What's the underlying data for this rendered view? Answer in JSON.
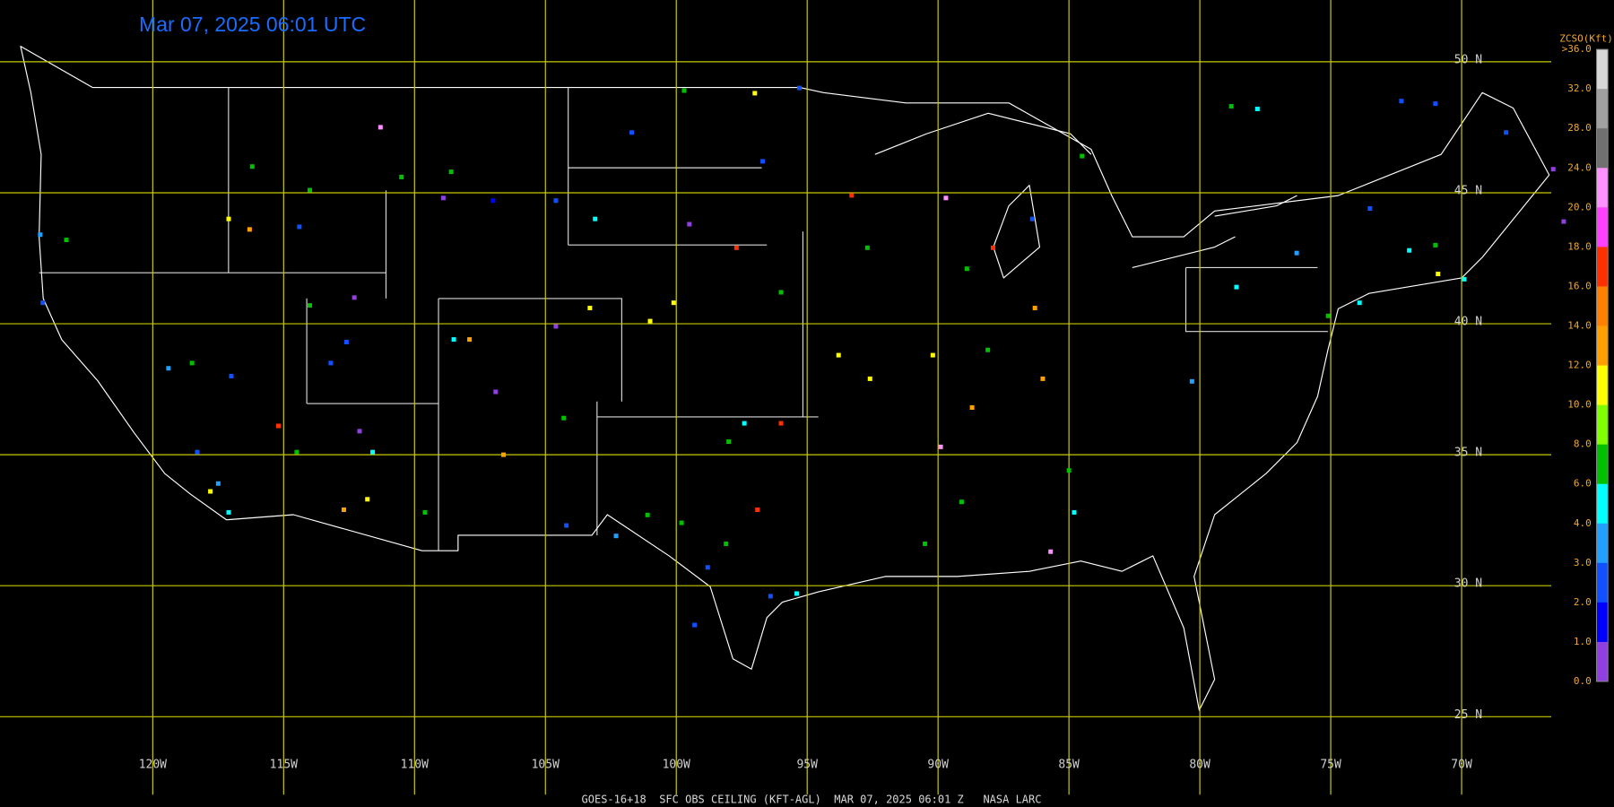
{
  "timestamp": "Mar 07, 2025 06:01 UTC",
  "footer": "GOES-16+18  SFC OBS CEILING (KFT-AGL)  MAR 07, 2025 06:01 Z   NASA LARC",
  "grid": {
    "lat": [
      {
        "value": 50,
        "label": "50 N"
      },
      {
        "value": 45,
        "label": "45 N"
      },
      {
        "value": 40,
        "label": "40 N"
      },
      {
        "value": 35,
        "label": "35 N"
      },
      {
        "value": 30,
        "label": "30 N"
      },
      {
        "value": 25,
        "label": "25 N"
      }
    ],
    "lon": [
      {
        "value": -120,
        "label": "120W"
      },
      {
        "value": -115,
        "label": "115W"
      },
      {
        "value": -110,
        "label": "110W"
      },
      {
        "value": -105,
        "label": "105W"
      },
      {
        "value": -100,
        "label": "100W"
      },
      {
        "value": -95,
        "label": "95W"
      },
      {
        "value": -90,
        "label": "90W"
      },
      {
        "value": -85,
        "label": "85W"
      },
      {
        "value": -80,
        "label": "80W"
      },
      {
        "value": -75,
        "label": "75W"
      },
      {
        "value": -70,
        "label": "70W"
      }
    ],
    "color": "#c8c800"
  },
  "colorbar": {
    "title": "ZCSO(Kft)",
    "labels": [
      ">36.0",
      "32.0",
      "28.0",
      "24.0",
      "20.0",
      "18.0",
      "16.0",
      "14.0",
      "12.0",
      "10.0",
      "8.0",
      "6.0",
      "4.0",
      "3.0",
      "2.0",
      "1.0",
      "0.0"
    ],
    "colors": [
      "#d8d8d8",
      "#a0a0a0",
      "#707070",
      "#ff90ff",
      "#ff40ff",
      "#ff3000",
      "#ff8000",
      "#ffa000",
      "#ffff00",
      "#80ff00",
      "#00c000",
      "#00ffff",
      "#20a0ff",
      "#1050ff",
      "#0000ff",
      "#9040e0"
    ]
  },
  "observations": [
    {
      "lon": -111.3,
      "lat": 47.5,
      "color": "#ff90ff"
    },
    {
      "lon": -116.2,
      "lat": 46.0,
      "color": "#00c000"
    },
    {
      "lon": -124.3,
      "lat": 43.4,
      "color": "#20a0ff"
    },
    {
      "lon": -123.3,
      "lat": 43.2,
      "color": "#00c000"
    },
    {
      "lon": -117.1,
      "lat": 44.0,
      "color": "#ffff00"
    },
    {
      "lon": -116.3,
      "lat": 43.6,
      "color": "#ffa000"
    },
    {
      "lon": -108.6,
      "lat": 45.8,
      "color": "#00c000"
    },
    {
      "lon": -101.7,
      "lat": 47.3,
      "color": "#1050ff"
    },
    {
      "lon": -99.7,
      "lat": 48.9,
      "color": "#00c000"
    },
    {
      "lon": -97.0,
      "lat": 48.8,
      "color": "#ffff00"
    },
    {
      "lon": -95.3,
      "lat": 49.0,
      "color": "#1050ff"
    },
    {
      "lon": -96.7,
      "lat": 46.2,
      "color": "#1050ff"
    },
    {
      "lon": -93.3,
      "lat": 44.9,
      "color": "#ff3000"
    },
    {
      "lon": -89.7,
      "lat": 44.8,
      "color": "#ff90ff"
    },
    {
      "lon": -87.9,
      "lat": 42.9,
      "color": "#ff3000"
    },
    {
      "lon": -84.5,
      "lat": 46.4,
      "color": "#00c000"
    },
    {
      "lon": -86.4,
      "lat": 44.0,
      "color": "#1050ff"
    },
    {
      "lon": -78.8,
      "lat": 48.3,
      "color": "#00c000"
    },
    {
      "lon": -77.8,
      "lat": 48.2,
      "color": "#00ffff"
    },
    {
      "lon": -72.3,
      "lat": 48.5,
      "color": "#1050ff"
    },
    {
      "lon": -71.0,
      "lat": 48.4,
      "color": "#1050ff"
    },
    {
      "lon": -68.3,
      "lat": 47.3,
      "color": "#1050ff"
    },
    {
      "lon": -66.5,
      "lat": 45.9,
      "color": "#9040e0"
    },
    {
      "lon": -66.1,
      "lat": 43.9,
      "color": "#9040e0"
    },
    {
      "lon": -73.5,
      "lat": 44.4,
      "color": "#1050ff"
    },
    {
      "lon": -72.0,
      "lat": 42.8,
      "color": "#00ffff"
    },
    {
      "lon": -70.9,
      "lat": 41.9,
      "color": "#ffff00"
    },
    {
      "lon": -69.9,
      "lat": 41.7,
      "color": "#00ffff"
    },
    {
      "lon": -71.0,
      "lat": 43.0,
      "color": "#00c000"
    },
    {
      "lon": -73.9,
      "lat": 40.8,
      "color": "#00ffff"
    },
    {
      "lon": -75.1,
      "lat": 40.3,
      "color": "#00c000"
    },
    {
      "lon": -76.3,
      "lat": 42.7,
      "color": "#20a0ff"
    },
    {
      "lon": -78.6,
      "lat": 41.4,
      "color": "#00ffff"
    },
    {
      "lon": -80.3,
      "lat": 37.8,
      "color": "#20a0ff"
    },
    {
      "lon": -84.8,
      "lat": 32.8,
      "color": "#00ffff"
    },
    {
      "lon": -85.0,
      "lat": 34.4,
      "color": "#00c000"
    },
    {
      "lon": -85.7,
      "lat": 31.3,
      "color": "#ff90ff"
    },
    {
      "lon": -89.1,
      "lat": 33.2,
      "color": "#00c000"
    },
    {
      "lon": -90.5,
      "lat": 31.6,
      "color": "#00c000"
    },
    {
      "lon": -89.9,
      "lat": 35.3,
      "color": "#ff90ff"
    },
    {
      "lon": -88.7,
      "lat": 36.8,
      "color": "#ffa000"
    },
    {
      "lon": -86.0,
      "lat": 37.9,
      "color": "#ffa000"
    },
    {
      "lon": -86.3,
      "lat": 40.6,
      "color": "#ffa000"
    },
    {
      "lon": -88.1,
      "lat": 39.0,
      "color": "#00c000"
    },
    {
      "lon": -90.2,
      "lat": 38.8,
      "color": "#ffff00"
    },
    {
      "lon": -88.9,
      "lat": 42.1,
      "color": "#00c000"
    },
    {
      "lon": -92.7,
      "lat": 42.9,
      "color": "#00c000"
    },
    {
      "lon": -93.8,
      "lat": 38.8,
      "color": "#ffff00"
    },
    {
      "lon": -92.6,
      "lat": 37.9,
      "color": "#ffff00"
    },
    {
      "lon": -96.0,
      "lat": 41.2,
      "color": "#00c000"
    },
    {
      "lon": -97.4,
      "lat": 36.2,
      "color": "#00ffff"
    },
    {
      "lon": -98.0,
      "lat": 35.5,
      "color": "#00c000"
    },
    {
      "lon": -96.0,
      "lat": 36.2,
      "color": "#ff3000"
    },
    {
      "lon": -96.9,
      "lat": 32.9,
      "color": "#ff3000"
    },
    {
      "lon": -98.1,
      "lat": 31.6,
      "color": "#00c000"
    },
    {
      "lon": -98.8,
      "lat": 30.7,
      "color": "#1050ff"
    },
    {
      "lon": -99.3,
      "lat": 28.5,
      "color": "#1050ff"
    },
    {
      "lon": -96.4,
      "lat": 29.6,
      "color": "#1050ff"
    },
    {
      "lon": -95.4,
      "lat": 29.7,
      "color": "#00ffff"
    },
    {
      "lon": -99.8,
      "lat": 32.4,
      "color": "#00c000"
    },
    {
      "lon": -102.3,
      "lat": 31.9,
      "color": "#20a0ff"
    },
    {
      "lon": -104.2,
      "lat": 32.3,
      "color": "#1050ff"
    },
    {
      "lon": -101.1,
      "lat": 32.7,
      "color": "#00c000"
    },
    {
      "lon": -104.3,
      "lat": 36.4,
      "color": "#00c000"
    },
    {
      "lon": -106.6,
      "lat": 35.0,
      "color": "#ffa000"
    },
    {
      "lon": -109.6,
      "lat": 32.8,
      "color": "#00c000"
    },
    {
      "lon": -111.8,
      "lat": 33.3,
      "color": "#ffff00"
    },
    {
      "lon": -112.7,
      "lat": 32.9,
      "color": "#ffa000"
    },
    {
      "lon": -112.1,
      "lat": 35.9,
      "color": "#9040e0"
    },
    {
      "lon": -111.6,
      "lat": 35.1,
      "color": "#00ffff"
    },
    {
      "lon": -114.5,
      "lat": 35.1,
      "color": "#00c000"
    },
    {
      "lon": -115.2,
      "lat": 36.1,
      "color": "#ff3000"
    },
    {
      "lon": -117.0,
      "lat": 38.0,
      "color": "#1050ff"
    },
    {
      "lon": -119.4,
      "lat": 38.3,
      "color": "#20a0ff"
    },
    {
      "lon": -118.5,
      "lat": 38.5,
      "color": "#00c000"
    },
    {
      "lon": -117.8,
      "lat": 33.6,
      "color": "#ffff00"
    },
    {
      "lon": -117.1,
      "lat": 32.8,
      "color": "#00ffff"
    },
    {
      "lon": -118.3,
      "lat": 35.1,
      "color": "#1050ff"
    },
    {
      "lon": -117.5,
      "lat": 33.9,
      "color": "#20a0ff"
    },
    {
      "lon": -114.0,
      "lat": 40.7,
      "color": "#00c000"
    },
    {
      "lon": -113.2,
      "lat": 38.5,
      "color": "#1050ff"
    },
    {
      "lon": -112.6,
      "lat": 39.3,
      "color": "#1050ff"
    },
    {
      "lon": -112.3,
      "lat": 41.0,
      "color": "#9040e0"
    },
    {
      "lon": -108.5,
      "lat": 39.4,
      "color": "#00ffff"
    },
    {
      "lon": -107.9,
      "lat": 39.4,
      "color": "#ffa000"
    },
    {
      "lon": -106.9,
      "lat": 37.4,
      "color": "#9040e0"
    },
    {
      "lon": -104.6,
      "lat": 39.9,
      "color": "#9040e0"
    },
    {
      "lon": -103.3,
      "lat": 40.6,
      "color": "#ffff00"
    },
    {
      "lon": -101.0,
      "lat": 40.1,
      "color": "#ffff00"
    },
    {
      "lon": -100.1,
      "lat": 40.8,
      "color": "#ffff00"
    },
    {
      "lon": -97.7,
      "lat": 42.9,
      "color": "#ff3000"
    },
    {
      "lon": -99.5,
      "lat": 43.8,
      "color": "#9040e0"
    },
    {
      "lon": -103.1,
      "lat": 44.0,
      "color": "#00ffff"
    },
    {
      "lon": -104.6,
      "lat": 44.7,
      "color": "#1050ff"
    },
    {
      "lon": -107.0,
      "lat": 44.7,
      "color": "#0000ff"
    },
    {
      "lon": -108.9,
      "lat": 44.8,
      "color": "#9040e0"
    },
    {
      "lon": -110.5,
      "lat": 45.6,
      "color": "#00c000"
    },
    {
      "lon": -114.0,
      "lat": 45.1,
      "color": "#00c000"
    },
    {
      "lon": -114.4,
      "lat": 43.7,
      "color": "#1050ff"
    },
    {
      "lon": -124.2,
      "lat": 40.8,
      "color": "#1050ff"
    }
  ]
}
